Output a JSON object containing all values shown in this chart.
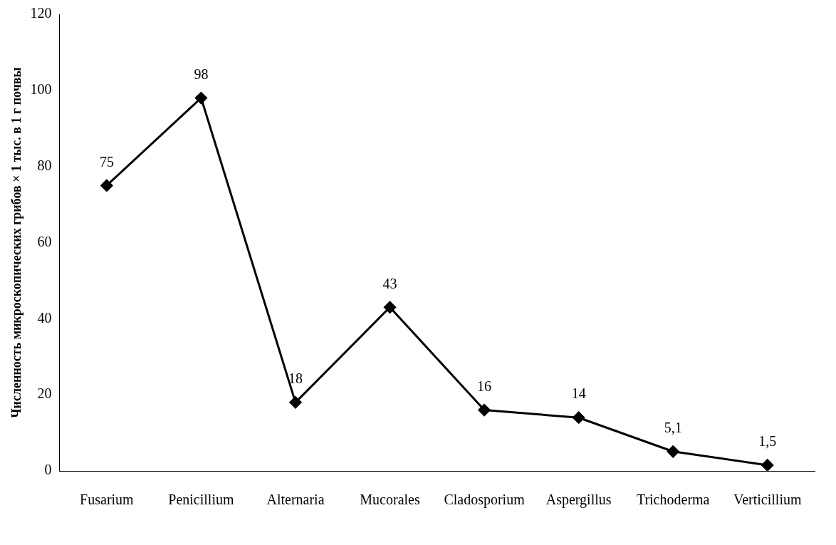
{
  "chart_data": {
    "type": "line",
    "ylabel": "Численность микроскопических грибов × 1 тыс. в 1 г почвы",
    "categories": [
      "Fusarium",
      "Penicillium",
      "Alternaria",
      "Mucorales",
      "Cladosporium",
      "Aspergillus",
      "Trichoderma",
      "Verticillium"
    ],
    "series": [
      {
        "color": "#000000",
        "values": [
          75,
          98,
          18,
          43,
          16,
          14,
          5.1,
          1.5
        ]
      }
    ],
    "value_labels": [
      "75",
      "98",
      "18",
      "43",
      "16",
      "14",
      "5,1",
      "1,5"
    ],
    "ylim": [
      0,
      120
    ],
    "yticks": [
      0,
      20,
      40,
      60,
      80,
      100,
      120
    ],
    "grid": false,
    "legend": false,
    "marker": "diamond",
    "line_style": "solid"
  }
}
